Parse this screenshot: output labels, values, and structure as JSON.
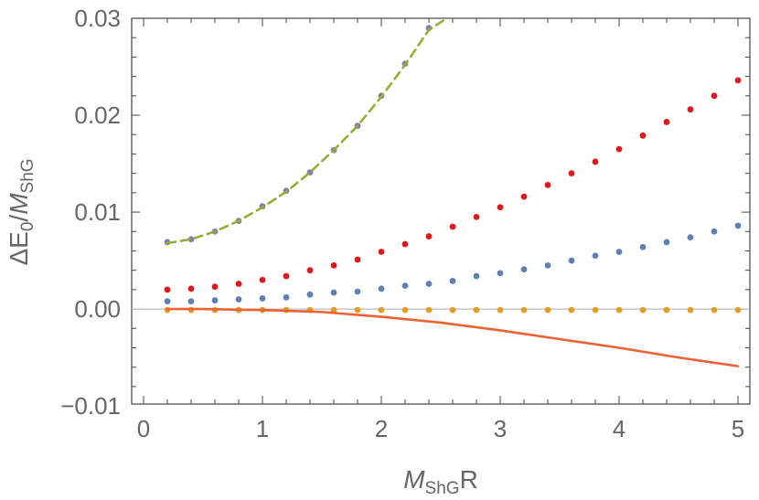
{
  "chart_data": {
    "type": "scatter",
    "title": "",
    "xlabel": {
      "main": "M",
      "sub": "ShG",
      "suffix": "R"
    },
    "ylabel": {
      "prefix": "ΔE",
      "sub0": "0",
      "slash": "/",
      "main": "M",
      "sub": "ShG"
    },
    "xlim": [
      -0.1,
      5.1
    ],
    "ylim": [
      -0.0098,
      0.03
    ],
    "xticks": [
      {
        "v": 0,
        "label": "0"
      },
      {
        "v": 1,
        "label": "1"
      },
      {
        "v": 2,
        "label": "2"
      },
      {
        "v": 3,
        "label": "3"
      },
      {
        "v": 4,
        "label": "4"
      },
      {
        "v": 5,
        "label": "5"
      }
    ],
    "yticks": [
      {
        "v": -0.01,
        "label": "−0.01"
      },
      {
        "v": 0.0,
        "label": "0.00"
      },
      {
        "v": 0.01,
        "label": "0.01"
      },
      {
        "v": 0.02,
        "label": "0.02"
      },
      {
        "v": 0.03,
        "label": "0.03"
      }
    ],
    "zero_line": true,
    "series": [
      {
        "name": "purple dots",
        "kind": "points",
        "color": "#8b7aad",
        "x": [
          0.2,
          0.4,
          0.6,
          0.8,
          1.0,
          1.2,
          1.4,
          1.6,
          1.8,
          2.0,
          2.2,
          2.4
        ],
        "y": [
          0.0069,
          0.0072,
          0.008,
          0.0091,
          0.0106,
          0.0122,
          0.0141,
          0.0164,
          0.0189,
          0.022,
          0.0253,
          0.029
        ]
      },
      {
        "name": "red dots",
        "kind": "points",
        "color": "#e0171b",
        "x": [
          0.2,
          0.4,
          0.6,
          0.8,
          1.0,
          1.2,
          1.4,
          1.6,
          1.8,
          2.0,
          2.2,
          2.4,
          2.6,
          2.8,
          3.0,
          3.2,
          3.4,
          3.6,
          3.8,
          4.0,
          4.2,
          4.4,
          4.6,
          4.8,
          5.0
        ],
        "y": [
          0.002,
          0.0021,
          0.0023,
          0.0026,
          0.003,
          0.0034,
          0.004,
          0.0045,
          0.0051,
          0.0059,
          0.0067,
          0.0075,
          0.0085,
          0.0095,
          0.0105,
          0.0116,
          0.0128,
          0.014,
          0.0152,
          0.0165,
          0.0179,
          0.0193,
          0.0206,
          0.022,
          0.0236
        ]
      },
      {
        "name": "blue dots",
        "kind": "points",
        "color": "#5e81b5",
        "x": [
          0.2,
          0.4,
          0.6,
          0.8,
          1.0,
          1.2,
          1.4,
          1.6,
          1.8,
          2.0,
          2.2,
          2.4,
          2.6,
          2.8,
          3.0,
          3.2,
          3.4,
          3.6,
          3.8,
          4.0,
          4.2,
          4.4,
          4.6,
          4.8,
          5.0
        ],
        "y": [
          0.0008,
          0.0008,
          0.0009,
          0.001,
          0.0011,
          0.0012,
          0.0015,
          0.0017,
          0.0018,
          0.0021,
          0.0024,
          0.0026,
          0.0029,
          0.0034,
          0.0037,
          0.0041,
          0.0045,
          0.005,
          0.0055,
          0.0059,
          0.0064,
          0.0069,
          0.0074,
          0.008,
          0.0086
        ]
      },
      {
        "name": "orange dots",
        "kind": "points",
        "color": "#e19c24",
        "x": [
          0.2,
          0.4,
          0.6,
          0.8,
          1.0,
          1.2,
          1.4,
          1.6,
          1.8,
          2.0,
          2.2,
          2.4,
          2.6,
          2.8,
          3.0,
          3.2,
          3.4,
          3.6,
          3.8,
          4.0,
          4.2,
          4.4,
          4.6,
          4.8,
          5.0
        ],
        "y": [
          -0.0001,
          -0.0001,
          -0.0001,
          -0.0001,
          -0.0001,
          -0.0001,
          -0.0001,
          -0.0001,
          -0.0001,
          -0.0001,
          -0.0001,
          -0.0001,
          -0.0001,
          -0.0001,
          -0.0001,
          -0.0001,
          -0.0001,
          -0.0001,
          -0.0001,
          -0.0001,
          -0.0001,
          -0.0001,
          -0.0001,
          -0.0001,
          -0.0001
        ]
      },
      {
        "name": "green dashed curve",
        "kind": "dashed-line",
        "color": "#8fb032",
        "x": [
          0.2,
          0.4,
          0.6,
          0.8,
          1.0,
          1.2,
          1.4,
          1.6,
          1.8,
          2.0,
          2.2,
          2.4,
          2.55
        ],
        "y": [
          0.0068,
          0.0072,
          0.008,
          0.0091,
          0.0105,
          0.0121,
          0.0141,
          0.0164,
          0.0189,
          0.0219,
          0.0252,
          0.0288,
          0.03
        ]
      },
      {
        "name": "orange solid curve",
        "kind": "line",
        "color": "#eb6235",
        "x": [
          0.2,
          0.5,
          1.0,
          1.5,
          2.0,
          2.5,
          3.0,
          3.5,
          4.0,
          4.5,
          5.0
        ],
        "y": [
          0.0,
          0.0,
          -0.0001,
          -0.0003,
          -0.0008,
          -0.0014,
          -0.0022,
          -0.0031,
          -0.004,
          -0.005,
          -0.0059
        ]
      }
    ]
  }
}
